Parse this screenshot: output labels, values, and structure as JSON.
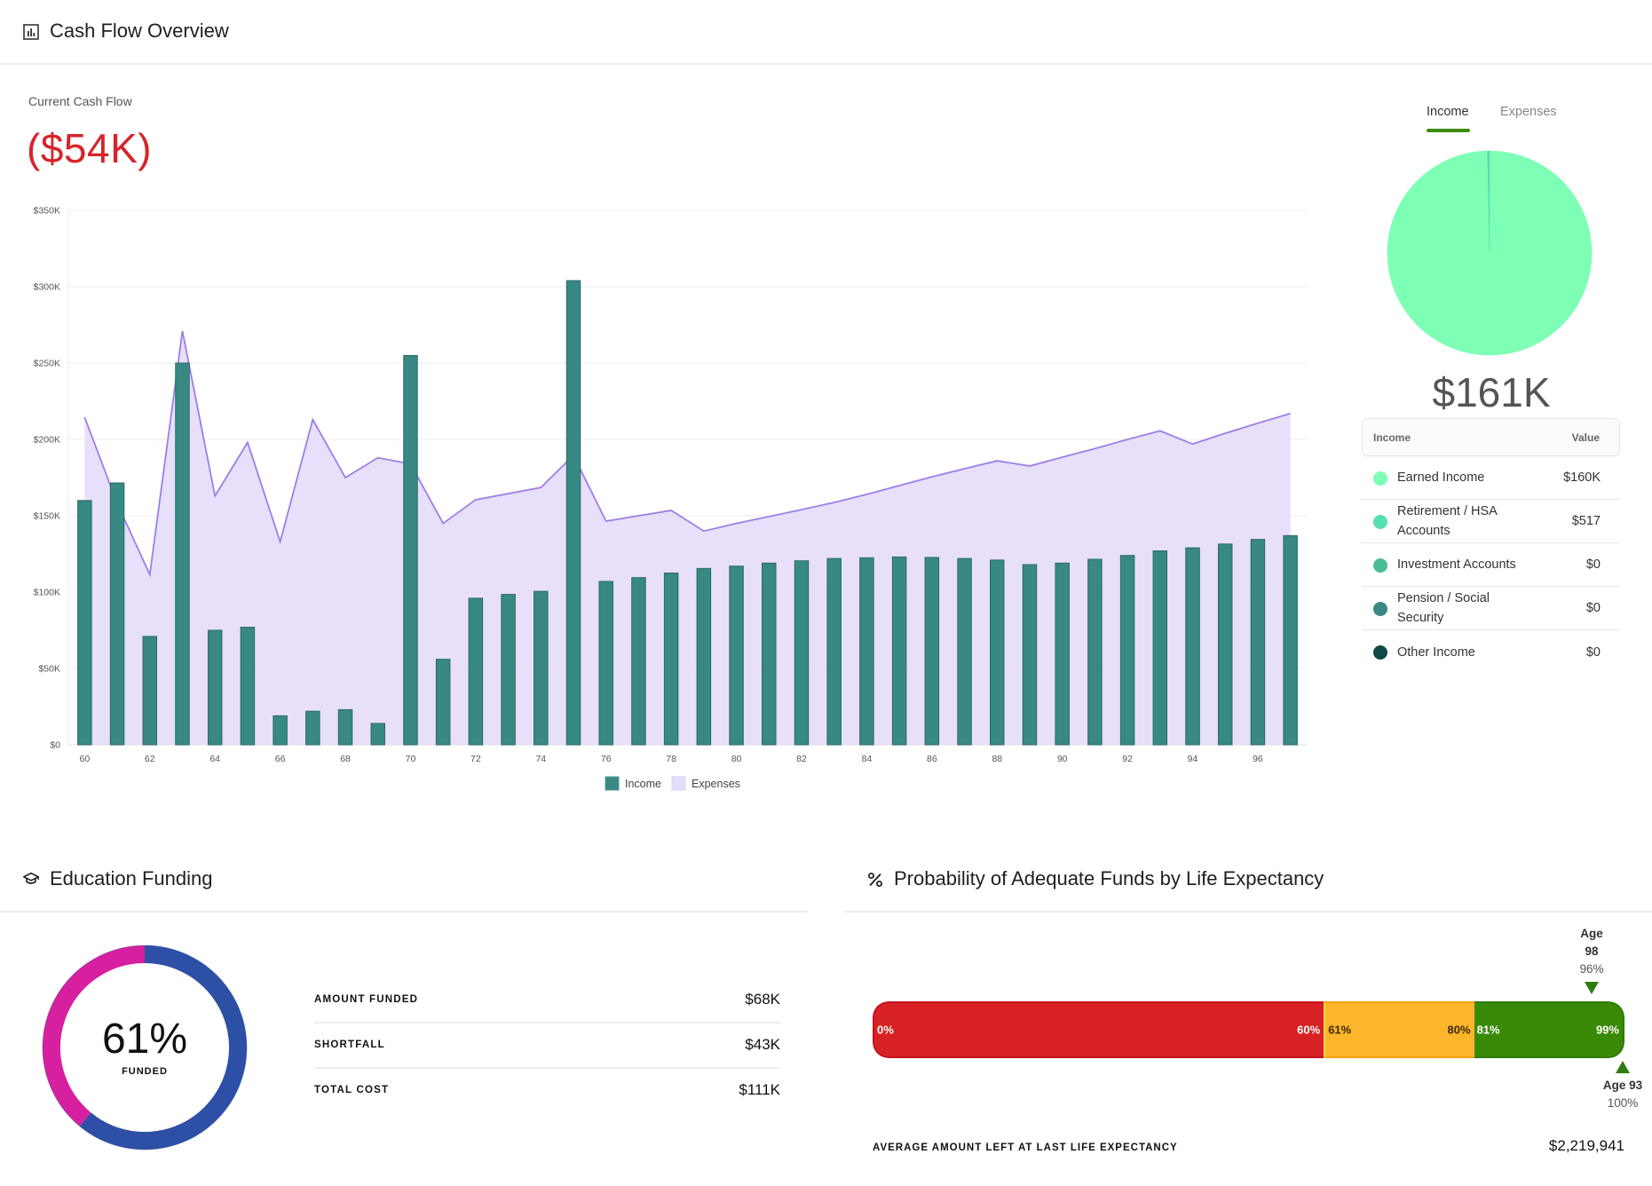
{
  "cash_flow": {
    "title": "Cash Flow Overview",
    "title_icon": "bar-chart-icon",
    "current_label": "Current Cash Flow",
    "current_value": "($54K)",
    "current_value_color": "#d8232a"
  },
  "chart_data": {
    "type": "bar",
    "title": "",
    "xlabel": "",
    "ylabel": "",
    "ylim": [
      0,
      350000
    ],
    "yticks": [
      0,
      50000,
      100000,
      150000,
      200000,
      250000,
      300000,
      350000
    ],
    "ytick_labels": [
      "$0",
      "$50K",
      "$100K",
      "$150K",
      "$200K",
      "$250K",
      "$300K",
      "$350K"
    ],
    "x": [
      60,
      61,
      62,
      63,
      64,
      65,
      66,
      67,
      68,
      69,
      70,
      71,
      72,
      73,
      74,
      75,
      76,
      77,
      78,
      79,
      80,
      81,
      82,
      83,
      84,
      85,
      86,
      87,
      88,
      89,
      90,
      91,
      92,
      93,
      94,
      95,
      96,
      97
    ],
    "xtick_labels": [
      "60",
      "62",
      "64",
      "66",
      "68",
      "70",
      "72",
      "74",
      "76",
      "78",
      "80",
      "82",
      "84",
      "86",
      "88",
      "90",
      "92",
      "94",
      "96"
    ],
    "grid": true,
    "legend_position": "bottom-center",
    "series": [
      {
        "name": "Income",
        "type": "bar",
        "color": "#388884",
        "values": [
          160000,
          171500,
          71000,
          250000,
          75000,
          77000,
          19000,
          22000,
          23000,
          14000,
          255000,
          56000,
          96000,
          98500,
          100500,
          304000,
          107000,
          109500,
          112500,
          115500,
          117000,
          119000,
          120500,
          122000,
          122500,
          123000,
          122700,
          122000,
          121000,
          118000,
          119000,
          121500,
          124000,
          127000,
          129000,
          131500,
          134500,
          137000
        ]
      },
      {
        "name": "Expenses",
        "type": "area",
        "color": "#9b7fe6",
        "fill": "#e5dcfb",
        "values": [
          214500,
          158000,
          111500,
          271000,
          163000,
          198000,
          133000,
          213000,
          175000,
          188000,
          184000,
          145000,
          160500,
          164500,
          168500,
          189500,
          146500,
          150000,
          153500,
          140000,
          145000,
          149500,
          154000,
          158700,
          164000,
          169800,
          175500,
          180800,
          186000,
          182600,
          188400,
          194000,
          200000,
          205600,
          197000,
          204000,
          210600,
          217000
        ]
      }
    ]
  },
  "income_panel": {
    "tabs": [
      {
        "label": "Income",
        "active": true
      },
      {
        "label": "Expenses",
        "active": false
      }
    ],
    "tab_accent": "#3d8c0e",
    "total": "$161K",
    "table_header": {
      "name": "Income",
      "value": "Value"
    },
    "items": [
      {
        "name": "Earned Income",
        "value": "$160K",
        "amount": 160000,
        "color": "#7dffb5"
      },
      {
        "name": "Retirement / HSA Accounts",
        "value": "$517",
        "amount": 517,
        "color": "#56e0b0"
      },
      {
        "name": "Investment Accounts",
        "value": "$0",
        "amount": 0,
        "color": "#4bbd96"
      },
      {
        "name": "Pension / Social Security",
        "value": "$0",
        "amount": 0,
        "color": "#388884"
      },
      {
        "name": "Other Income",
        "value": "$0",
        "amount": 0,
        "color": "#0d4a47"
      }
    ]
  },
  "education": {
    "title": "Education Funding",
    "title_icon": "graduation-cap-icon",
    "funded_pct": 61,
    "funded_pct_label": "61%",
    "funded_sub": "FUNDED",
    "funded_color": "#2d4fa5",
    "shortfall_color": "#d620a0",
    "rows": [
      {
        "label": "AMOUNT FUNDED",
        "value": "$68K"
      },
      {
        "label": "SHORTFALL",
        "value": "$43K"
      },
      {
        "label": "TOTAL COST",
        "value": "$111K"
      }
    ]
  },
  "probability": {
    "title": "Probability of Adequate Funds by Life Expectancy",
    "title_icon": "percent-icon",
    "segments": [
      {
        "from": 0,
        "to": 60,
        "from_label": "0%",
        "to_label": "60%",
        "color": "#d82124"
      },
      {
        "from": 61,
        "to": 80,
        "from_label": "61%",
        "to_label": "80%",
        "color": "#fdb52b"
      },
      {
        "from": 81,
        "to": 99,
        "from_label": "81%",
        "to_label": "99%",
        "color": "#3b8a07"
      }
    ],
    "marker_top": {
      "age_label": "Age",
      "age": "98",
      "pct": "96%",
      "value": 96
    },
    "marker_bottom": {
      "age_label": "Age 93",
      "pct": "100%",
      "value": 100
    },
    "avg_label": "AVERAGE AMOUNT LEFT AT LAST LIFE EXPECTANCY",
    "avg_value": "$2,219,941"
  }
}
